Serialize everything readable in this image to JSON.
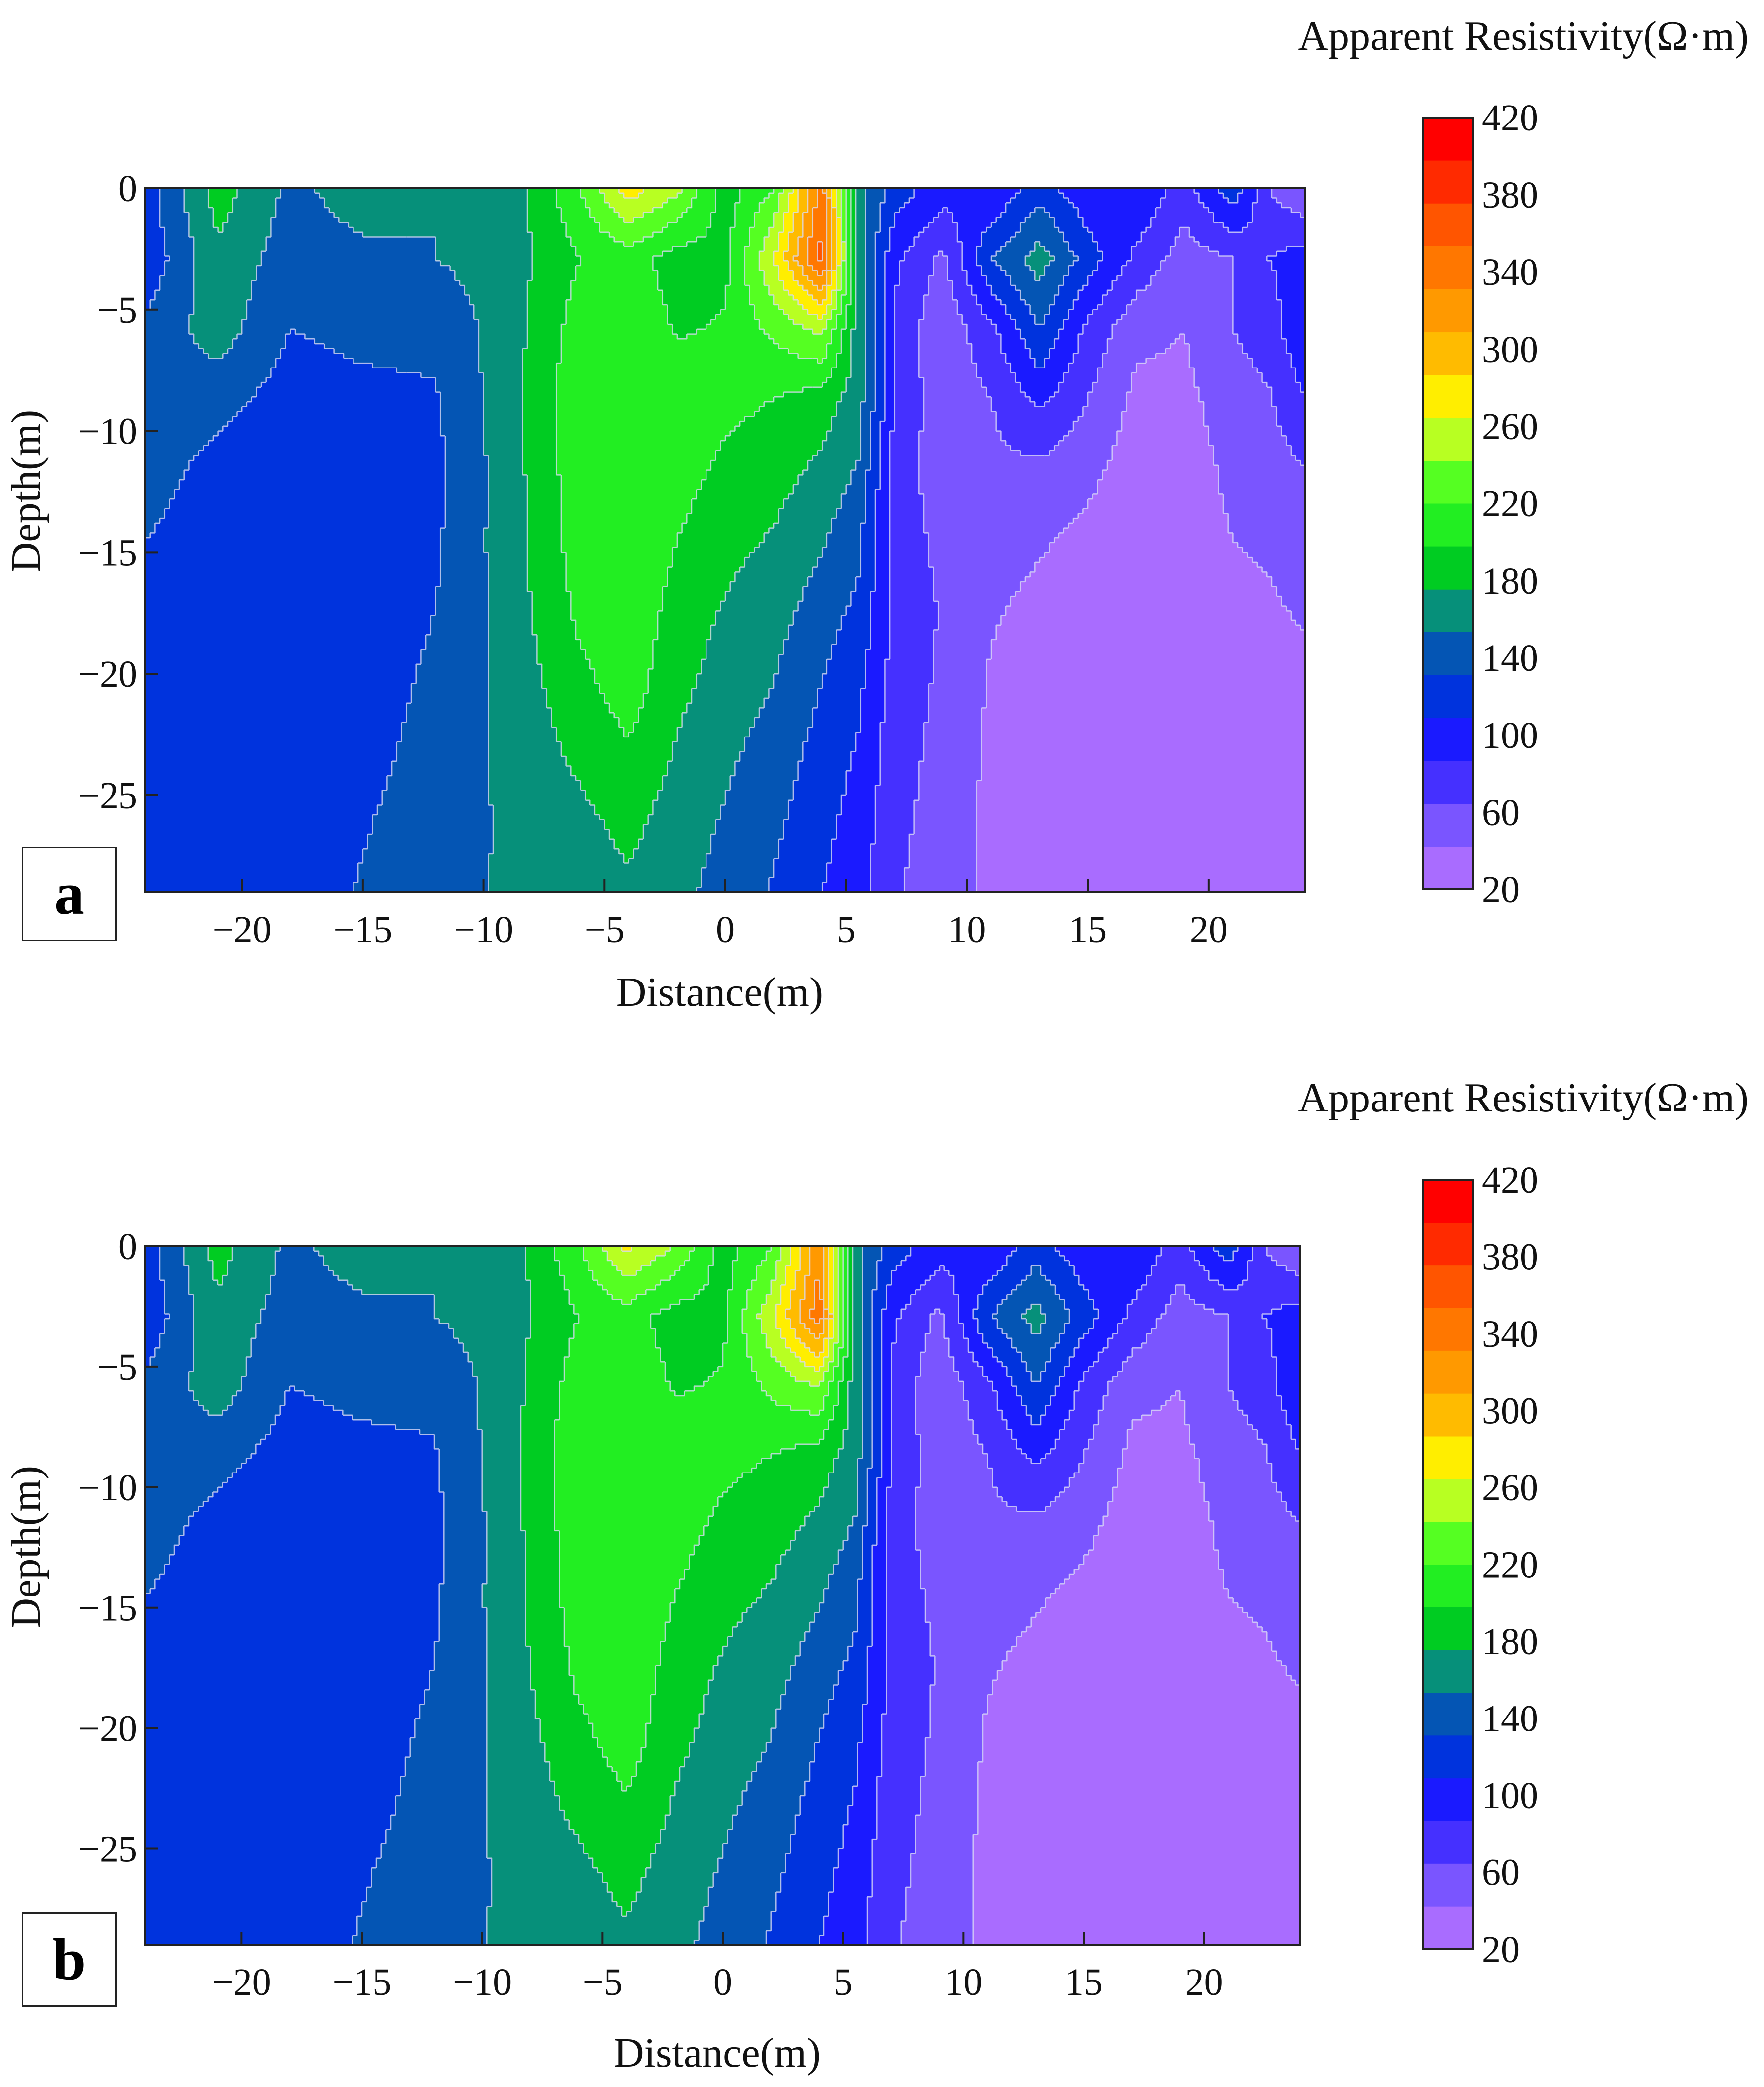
{
  "figure": {
    "colors": {
      "bands": [
        "#a96cff",
        "#7a55ff",
        "#4530ff",
        "#1a1aff",
        "#0033dd",
        "#0455b4",
        "#06907a",
        "#00cc22",
        "#22ee22",
        "#55ff22",
        "#b8ff22",
        "#ffee00",
        "#ffbb00",
        "#ff9900",
        "#ff7700",
        "#ff5500",
        "#ff2a00",
        "#ff0000"
      ],
      "contour_line": "#d9d9f5"
    }
  },
  "chart_data": [
    {
      "panel": "a",
      "type": "heatmap",
      "xlabel": "Distance(m)",
      "ylabel": "Depth(m)",
      "xlim": [
        -24,
        24
      ],
      "ylim": [
        -29,
        0
      ],
      "xticks": [
        -20,
        -15,
        -10,
        -5,
        0,
        5,
        10,
        15,
        20
      ],
      "xticklabels": [
        "−20",
        "−15",
        "−10",
        "−5",
        "0",
        "5",
        "10",
        "15",
        "20"
      ],
      "yticks": [
        0,
        -5,
        -10,
        -15,
        -20,
        -25
      ],
      "yticklabels": [
        "0",
        "−5",
        "−10",
        "−15",
        "−20",
        "−25"
      ],
      "colorbar": {
        "title": "Apparent Resistivity(Ω·m)",
        "range": [
          20,
          420
        ],
        "step": 20,
        "ticks": [
          "420",
          "380",
          "340",
          "300",
          "260",
          "220",
          "180",
          "140",
          "100",
          "60",
          "20"
        ]
      },
      "columns": [
        {
          "x": -24,
          "values": [
            110,
            105,
            125,
            130,
            130,
            120,
            112,
            108,
            106,
            105,
            104
          ]
        },
        {
          "x": -21,
          "values": [
            170,
            155,
            150,
            128,
            112,
            108,
            105,
            104,
            104,
            104,
            104
          ]
        },
        {
          "x": -18,
          "values": [
            135,
            130,
            120,
            110,
            100,
            102,
            105,
            105,
            106,
            107,
            108
          ]
        },
        {
          "x": -15,
          "values": [
            150,
            135,
            125,
            115,
            108,
            108,
            108,
            110,
            113,
            118,
            122
          ]
        },
        {
          "x": -12,
          "values": [
            140,
            140,
            125,
            118,
            115,
            117,
            120,
            124,
            128,
            132,
            135
          ]
        },
        {
          "x": -9,
          "values": [
            145,
            150,
            150,
            152,
            150,
            150,
            148,
            146,
            145,
            142,
            142
          ]
        },
        {
          "x": -6,
          "values": [
            200,
            180,
            190,
            195,
            193,
            190,
            185,
            175,
            165,
            155,
            150
          ]
        },
        {
          "x": -4,
          "values": [
            250,
            190,
            195,
            200,
            200,
            198,
            195,
            190,
            178,
            166,
            156
          ]
        },
        {
          "x": -2,
          "values": [
            225,
            170,
            178,
            190,
            188,
            180,
            172,
            166,
            158,
            150,
            145
          ]
        },
        {
          "x": 0,
          "values": [
            170,
            175,
            182,
            185,
            176,
            166,
            158,
            151,
            144,
            138,
            133
          ]
        },
        {
          "x": 2,
          "values": [
            200,
            240,
            205,
            180,
            168,
            158,
            148,
            140,
            132,
            124,
            118
          ]
        },
        {
          "x": 4,
          "values": [
            310,
            330,
            225,
            170,
            155,
            142,
            130,
            120,
            112,
            106,
            100
          ]
        },
        {
          "x": 5.5,
          "values": [
            150,
            150,
            150,
            150,
            138,
            125,
            115,
            105,
            98,
            92,
            88
          ]
        },
        {
          "x": 7,
          "values": [
            110,
            85,
            75,
            80,
            70,
            70,
            75,
            72,
            68,
            65,
            62
          ]
        },
        {
          "x": 9,
          "values": [
            90,
            55,
            45,
            45,
            50,
            55,
            58,
            56,
            54,
            52,
            50
          ]
        },
        {
          "x": 11,
          "values": [
            80,
            120,
            75,
            60,
            55,
            48,
            42,
            38,
            36,
            35,
            35
          ]
        },
        {
          "x": 13,
          "values": [
            110,
            150,
            120,
            85,
            55,
            42,
            35,
            30,
            28,
            28,
            28
          ]
        },
        {
          "x": 15,
          "values": [
            85,
            110,
            75,
            60,
            45,
            35,
            30,
            26,
            24,
            24,
            24
          ]
        },
        {
          "x": 17,
          "values": [
            100,
            75,
            45,
            35,
            30,
            30,
            28,
            26,
            24,
            23,
            22
          ]
        },
        {
          "x": 19,
          "values": [
            70,
            50,
            40,
            35,
            30,
            30,
            28,
            26,
            24,
            23,
            22
          ]
        },
        {
          "x": 21,
          "values": [
            115,
            60,
            60,
            50,
            45,
            40,
            36,
            33,
            30,
            28,
            26
          ]
        },
        {
          "x": 22.5,
          "values": [
            60,
            80,
            70,
            58,
            50,
            42,
            38,
            34,
            31,
            29,
            27
          ]
        },
        {
          "x": 24,
          "values": [
            40,
            90,
            100,
            80,
            60,
            50,
            42,
            36,
            32,
            30,
            28
          ]
        }
      ]
    },
    {
      "panel": "b",
      "type": "heatmap",
      "xlabel": "Distance(m)",
      "ylabel": "Depth(m)",
      "xlim": [
        -24,
        24
      ],
      "ylim": [
        -29,
        0
      ],
      "xticks": [
        -20,
        -15,
        -10,
        -5,
        0,
        5,
        10,
        15,
        20
      ],
      "xticklabels": [
        "−20",
        "−15",
        "−10",
        "−5",
        "0",
        "5",
        "10",
        "15",
        "20"
      ],
      "yticks": [
        0,
        -5,
        -10,
        -15,
        -20,
        -25
      ],
      "yticklabels": [
        "0",
        "−5",
        "−10",
        "−15",
        "−20",
        "−25"
      ],
      "colorbar": {
        "title": "Apparent Resistivity(Ω·m)",
        "range": [
          20,
          420
        ],
        "step": 20,
        "ticks": [
          "420",
          "380",
          "340",
          "300",
          "260",
          "220",
          "180",
          "140",
          "100",
          "60",
          "20"
        ]
      },
      "columns": [
        {
          "x": -24,
          "values": [
            110,
            105,
            125,
            130,
            130,
            120,
            112,
            108,
            106,
            105,
            104
          ]
        },
        {
          "x": -21,
          "values": [
            168,
            155,
            150,
            128,
            112,
            108,
            105,
            104,
            104,
            104,
            104
          ]
        },
        {
          "x": -18,
          "values": [
            135,
            130,
            120,
            110,
            100,
            102,
            105,
            105,
            106,
            107,
            108
          ]
        },
        {
          "x": -15,
          "values": [
            150,
            135,
            125,
            115,
            108,
            108,
            108,
            110,
            113,
            118,
            122
          ]
        },
        {
          "x": -12,
          "values": [
            140,
            140,
            125,
            118,
            115,
            117,
            120,
            124,
            128,
            132,
            135
          ]
        },
        {
          "x": -9,
          "values": [
            145,
            150,
            150,
            152,
            150,
            150,
            148,
            146,
            145,
            142,
            142
          ]
        },
        {
          "x": -6,
          "values": [
            198,
            180,
            190,
            195,
            193,
            190,
            185,
            175,
            165,
            155,
            150
          ]
        },
        {
          "x": -4,
          "values": [
            245,
            190,
            195,
            200,
            200,
            198,
            195,
            190,
            178,
            166,
            156
          ]
        },
        {
          "x": -2,
          "values": [
            220,
            170,
            178,
            190,
            188,
            180,
            172,
            166,
            158,
            150,
            145
          ]
        },
        {
          "x": 0,
          "values": [
            170,
            175,
            182,
            185,
            176,
            166,
            158,
            151,
            144,
            138,
            133
          ]
        },
        {
          "x": 2,
          "values": [
            198,
            235,
            205,
            180,
            168,
            158,
            148,
            140,
            132,
            124,
            118
          ]
        },
        {
          "x": 4,
          "values": [
            295,
            315,
            220,
            170,
            155,
            142,
            130,
            120,
            112,
            106,
            100
          ]
        },
        {
          "x": 5.5,
          "values": [
            150,
            150,
            150,
            150,
            138,
            125,
            115,
            105,
            98,
            92,
            88
          ]
        },
        {
          "x": 7,
          "values": [
            110,
            85,
            75,
            80,
            70,
            70,
            75,
            72,
            68,
            65,
            62
          ]
        },
        {
          "x": 9,
          "values": [
            90,
            55,
            45,
            45,
            50,
            55,
            58,
            56,
            54,
            52,
            50
          ]
        },
        {
          "x": 11,
          "values": [
            80,
            118,
            75,
            60,
            55,
            48,
            42,
            38,
            36,
            35,
            35
          ]
        },
        {
          "x": 13,
          "values": [
            110,
            148,
            120,
            85,
            55,
            42,
            35,
            30,
            28,
            28,
            28
          ]
        },
        {
          "x": 15,
          "values": [
            85,
            110,
            75,
            60,
            45,
            35,
            30,
            26,
            24,
            24,
            24
          ]
        },
        {
          "x": 17,
          "values": [
            100,
            75,
            45,
            35,
            30,
            30,
            28,
            26,
            24,
            23,
            22
          ]
        },
        {
          "x": 19,
          "values": [
            70,
            50,
            40,
            35,
            30,
            30,
            28,
            26,
            24,
            23,
            22
          ]
        },
        {
          "x": 21,
          "values": [
            115,
            60,
            60,
            50,
            45,
            40,
            36,
            33,
            30,
            28,
            26
          ]
        },
        {
          "x": 22.5,
          "values": [
            60,
            80,
            70,
            58,
            50,
            42,
            38,
            34,
            31,
            29,
            27
          ]
        },
        {
          "x": 24,
          "values": [
            40,
            90,
            100,
            80,
            60,
            50,
            42,
            36,
            32,
            30,
            28
          ]
        }
      ]
    }
  ]
}
